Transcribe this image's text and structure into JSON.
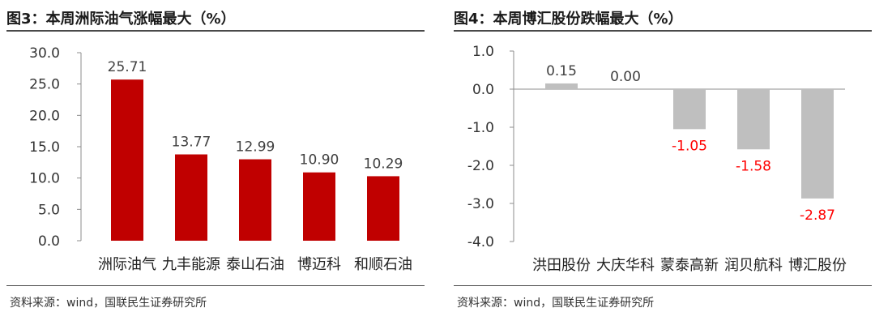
{
  "charts": [
    {
      "title": "图3：本周洲际油气涨幅最大（%）",
      "source": "资料来源：wind，国联民生证券研究所"
    },
    {
      "title": "图4：本周博汇股份跌幅最大（%）",
      "source": "资料来源：wind，国联民生证券研究所"
    }
  ],
  "chart_data": [
    {
      "type": "bar",
      "title": "图3：本周洲际油气涨幅最大（%）",
      "categories": [
        "洲际油气",
        "九丰能源",
        "泰山石油",
        "博迈科",
        "和顺石油"
      ],
      "values": [
        25.71,
        13.77,
        12.99,
        10.9,
        10.29
      ],
      "data_labels": [
        "25.71",
        "13.77",
        "12.99",
        "10.90",
        "10.29"
      ],
      "ylim": [
        0,
        30
      ],
      "yticks": [
        "0.0",
        "5.0",
        "10.0",
        "15.0",
        "20.0",
        "25.0",
        "30.0"
      ],
      "bar_color": "#C00000",
      "label_color": "#404040",
      "grid": false,
      "legend": "none"
    },
    {
      "type": "bar",
      "title": "图4：本周博汇股份跌幅最大（%）",
      "categories": [
        "洪田股份",
        "大庆华科",
        "蒙泰高新",
        "润贝航科",
        "博汇股份"
      ],
      "values": [
        0.15,
        0.0,
        -1.05,
        -1.58,
        -2.87
      ],
      "data_labels": [
        "0.15",
        "0.00",
        "-1.05",
        "-1.58",
        "-2.87"
      ],
      "ylim": [
        -4,
        1
      ],
      "yticks": [
        "-4.0",
        "-3.0",
        "-2.0",
        "-1.0",
        "0.0",
        "1.0"
      ],
      "bar_color": "#BFBFBF",
      "positive_label_color": "#404040",
      "negative_label_color": "#FF0000",
      "grid": false,
      "legend": "none"
    }
  ]
}
